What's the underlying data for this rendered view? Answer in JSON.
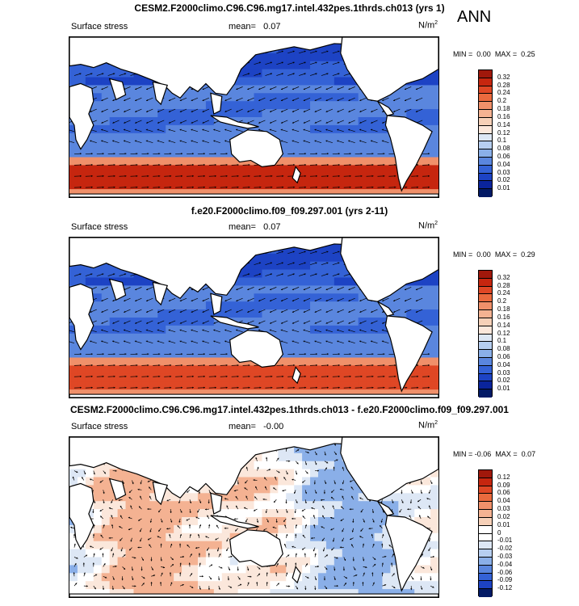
{
  "season": "ANN",
  "panels": [
    {
      "title": "CESM2.F2000climo.C96.C96.mg17.intel.432pes.1thrds.ch013 (yrs 1)",
      "variable": "Surface stress",
      "mean_label": "mean=",
      "mean_value": "0.07",
      "units": "N/m",
      "units_exp": "2",
      "min_label": "MIN =",
      "min_value": "0.00",
      "max_label": "MAX =",
      "max_value": "0.25",
      "colorbar_levels": [
        "0.32",
        "0.28",
        "0.24",
        "0.2",
        "0.18",
        "0.16",
        "0.14",
        "0.12",
        "0.1",
        "0.08",
        "0.06",
        "0.04",
        "0.03",
        "0.02",
        "0.01"
      ],
      "colorbar_colors": [
        "#a0180b",
        "#c6260f",
        "#df4725",
        "#ea6a3e",
        "#f0906a",
        "#f4b292",
        "#f6d0b8",
        "#fbe7db",
        "#dde7f5",
        "#b6cef0",
        "#8aafe8",
        "#5a86de",
        "#3462d6",
        "#1d43c4",
        "#0a249c",
        "#031a66"
      ]
    },
    {
      "title": "f.e20.F2000climo.f09_f09.297.001 (yrs 2-11)",
      "variable": "Surface stress",
      "mean_label": "mean=",
      "mean_value": "0.07",
      "units": "N/m",
      "units_exp": "2",
      "min_label": "MIN =",
      "min_value": "0.00",
      "max_label": "MAX =",
      "max_value": "0.29",
      "colorbar_levels": [
        "0.32",
        "0.28",
        "0.24",
        "0.2",
        "0.18",
        "0.16",
        "0.14",
        "0.12",
        "0.1",
        "0.08",
        "0.06",
        "0.04",
        "0.03",
        "0.02",
        "0.01"
      ],
      "colorbar_colors": [
        "#a0180b",
        "#c6260f",
        "#df4725",
        "#ea6a3e",
        "#f0906a",
        "#f4b292",
        "#f6d0b8",
        "#fbe7db",
        "#dde7f5",
        "#b6cef0",
        "#8aafe8",
        "#5a86de",
        "#3462d6",
        "#1d43c4",
        "#0a249c",
        "#031a66"
      ]
    },
    {
      "title": "CESM2.F2000climo.C96.C96.mg17.intel.432pes.1thrds.ch013 - f.e20.F2000climo.f09_f09.297.001",
      "variable": "Surface stress",
      "mean_label": "mean=",
      "mean_value": "-0.00",
      "units": "N/m",
      "units_exp": "2",
      "min_label": "MIN =",
      "min_value": "-0.06",
      "max_label": "MAX =",
      "max_value": "0.07",
      "colorbar_levels": [
        "0.12",
        "0.09",
        "0.06",
        "0.04",
        "0.03",
        "0.02",
        "0.01",
        "0",
        "-0.01",
        "-0.02",
        "-0.03",
        "-0.04",
        "-0.06",
        "-0.09",
        "-0.12"
      ],
      "colorbar_colors": [
        "#a0180b",
        "#c6260f",
        "#df4725",
        "#ea6a3e",
        "#f0906a",
        "#f4b292",
        "#f6d0b8",
        "#ffffff",
        "#ffffff",
        "#dde7f5",
        "#b6cef0",
        "#8aafe8",
        "#5a86de",
        "#3462d6",
        "#1d43c4",
        "#031a66"
      ]
    }
  ]
}
